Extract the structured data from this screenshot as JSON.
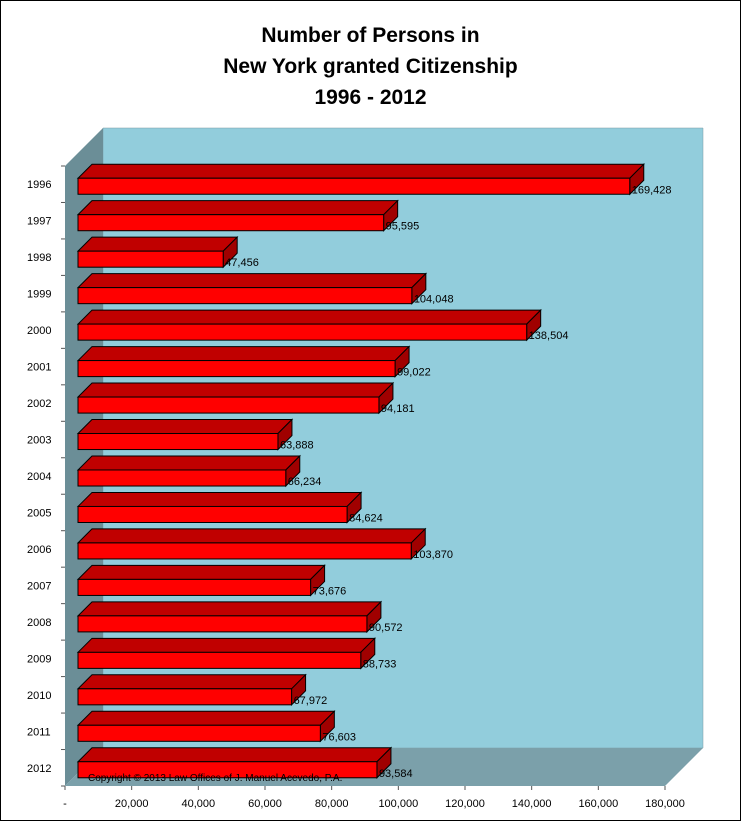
{
  "chart_data": {
    "type": "bar",
    "orientation": "horizontal",
    "title_lines": [
      "Number of Persons in",
      "New York granted Citizenship",
      "1996 - 2012"
    ],
    "categories": [
      "1996",
      "1997",
      "1998",
      "1999",
      "2000",
      "2001",
      "2002",
      "2003",
      "2004",
      "2005",
      "2006",
      "2007",
      "2008",
      "2009",
      "2010",
      "2011",
      "2012"
    ],
    "values": [
      169428,
      95595,
      47456,
      104048,
      138504,
      99022,
      94181,
      63888,
      66234,
      84624,
      103870,
      73676,
      90572,
      88733,
      67972,
      76603,
      93584
    ],
    "value_labels": [
      "169,428",
      "95,595",
      "47,456",
      "104,048",
      "138,504",
      "99,022",
      "94,181",
      "63,888",
      "66,234",
      "84,624",
      "103,870",
      "73,676",
      "90,572",
      "88,733",
      "67,972",
      "76,603",
      "93,584"
    ],
    "xlim": [
      0,
      180000
    ],
    "x_ticks": [
      0,
      20000,
      40000,
      60000,
      80000,
      100000,
      120000,
      140000,
      160000,
      180000
    ],
    "x_tick_labels": [
      "-",
      "20,000",
      "40,000",
      "60,000",
      "80,000",
      "100,000",
      "120,000",
      "140,000",
      "160,000",
      "180,000"
    ],
    "xlabel": "",
    "ylabel": "",
    "grid": false,
    "legend": "none",
    "annotation": "Copyright © 2013 Law Offices of J. Manuel Acevedo, P.A.",
    "colors": {
      "bar_front": "#ff0000",
      "bar_top": "#c00000",
      "bar_side": "#a00000",
      "back_wall": "#92cddc",
      "side_wall": "#6b8e97",
      "floor": "#7ba0aa"
    }
  }
}
